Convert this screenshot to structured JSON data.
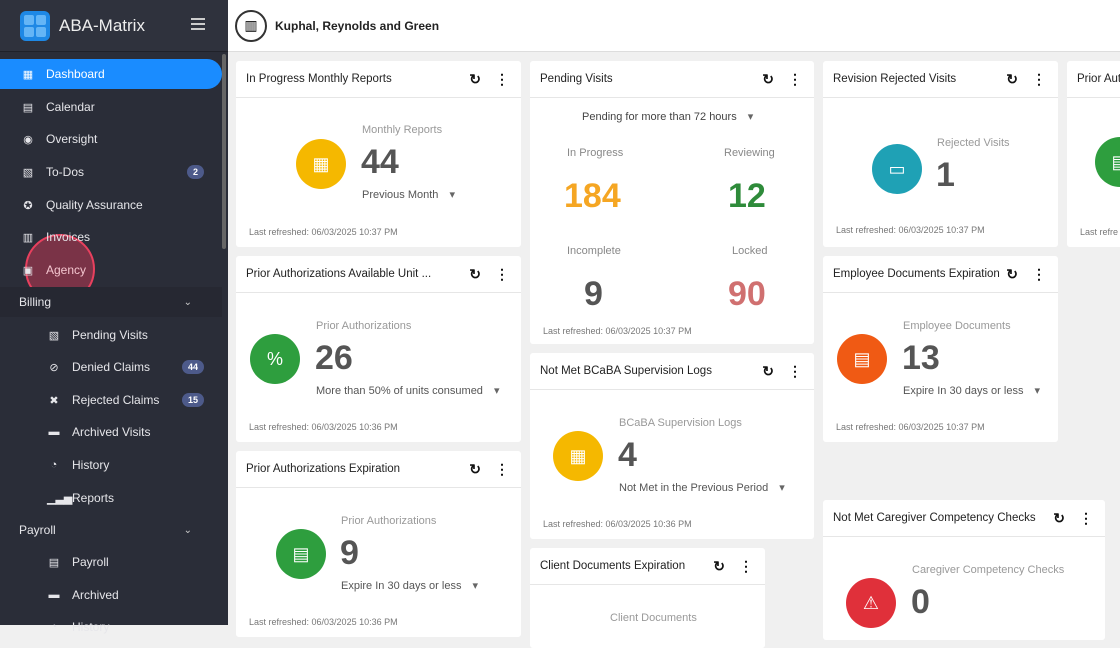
{
  "app": {
    "name": "ABA-Matrix",
    "org": "Kuphal, Reynolds and Green"
  },
  "sidebar": {
    "items": [
      {
        "label": "Dashboard"
      },
      {
        "label": "Calendar"
      },
      {
        "label": "Oversight"
      },
      {
        "label": "To-Dos",
        "badge": "2"
      },
      {
        "label": "Quality Assurance"
      },
      {
        "label": "Invoices"
      },
      {
        "label": "Agency"
      }
    ],
    "billing": {
      "label": "Billing",
      "items": [
        {
          "label": "Pending Visits"
        },
        {
          "label": "Denied Claims",
          "badge": "44"
        },
        {
          "label": "Rejected Claims",
          "badge": "15"
        },
        {
          "label": "Archived Visits"
        },
        {
          "label": "History"
        },
        {
          "label": "Reports"
        }
      ]
    },
    "payroll": {
      "label": "Payroll",
      "items": [
        {
          "label": "Payroll"
        },
        {
          "label": "Archived"
        },
        {
          "label": "History"
        }
      ]
    }
  },
  "cards": {
    "monthly": {
      "title": "In Progress Monthly Reports",
      "label": "Monthly Reports",
      "value": "44",
      "filter": "Previous Month",
      "refreshed": "Last refreshed: 06/03/2025 10:37 PM"
    },
    "pa_units": {
      "title": "Prior Authorizations Available Unit ...",
      "label": "Prior Authorizations",
      "value": "26",
      "filter": "More than 50% of units consumed",
      "refreshed": "Last refreshed: 06/03/2025 10:36 PM"
    },
    "pa_exp": {
      "title": "Prior Authorizations Expiration",
      "label": "Prior Authorizations",
      "value": "9",
      "filter": "Expire In 30 days or less",
      "refreshed": "Last refreshed: 06/03/2025 10:36 PM"
    },
    "pending": {
      "title": "Pending Visits",
      "filter": "Pending for more than 72 hours",
      "in_progress_label": "In Progress",
      "in_progress": "184",
      "reviewing_label": "Reviewing",
      "reviewing": "12",
      "incomplete_label": "Incomplete",
      "incomplete": "9",
      "locked_label": "Locked",
      "locked": "90",
      "refreshed": "Last refreshed: 06/03/2025 10:37 PM"
    },
    "bcaba": {
      "title": "Not Met BCaBA Supervision Logs",
      "label": "BCaBA Supervision Logs",
      "value": "4",
      "filter": "Not Met in the Previous Period",
      "refreshed": "Last refreshed: 06/03/2025 10:36 PM"
    },
    "client_docs": {
      "title": "Client Documents Expiration",
      "label": "Client Documents"
    },
    "revision": {
      "title": "Revision Rejected Visits",
      "label": "Rejected Visits",
      "value": "1",
      "refreshed": "Last refreshed: 06/03/2025 10:37 PM"
    },
    "emp_docs": {
      "title": "Employee Documents Expiration",
      "label": "Employee Documents",
      "value": "13",
      "filter": "Expire In 30 days or less",
      "refreshed": "Last refreshed: 06/03/2025 10:37 PM"
    },
    "caregiver": {
      "title": "Not Met Caregiver Competency Checks",
      "label": "Caregiver Competency Checks",
      "value": "0"
    },
    "prior_aut": {
      "title": "Prior Aut",
      "refreshed": "Last refre"
    }
  },
  "colors": {
    "accent": "#1a8cff",
    "yellow": "#f5b800",
    "green": "#2e9e3e",
    "teal": "#1fa1b5",
    "orange": "#f05a14",
    "red": "#e0303a",
    "locked": "#d07070"
  }
}
